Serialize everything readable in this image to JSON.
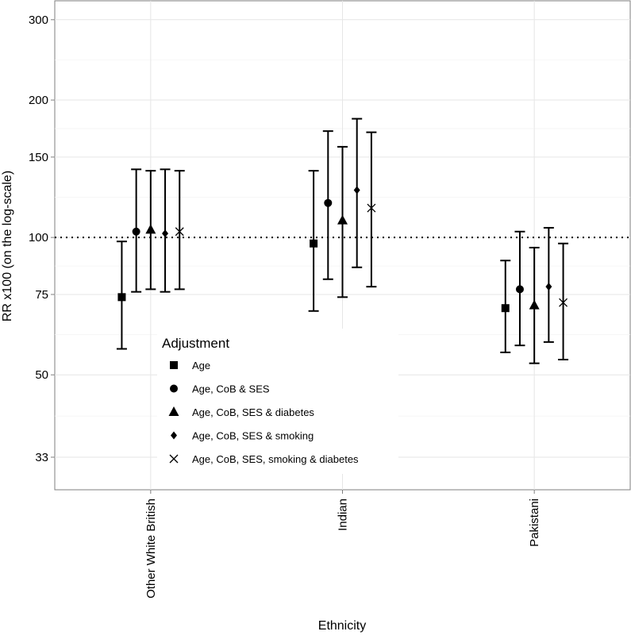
{
  "chart_data": {
    "type": "scatter",
    "subtype": "point-range with error bars",
    "xlabel": "Ethnicity",
    "ylabel": "RR x100 (on the log-scale)",
    "y_scale": "log",
    "ylim": [
      28,
      330
    ],
    "yticks": [
      33,
      50,
      75,
      100,
      150,
      200,
      300
    ],
    "grid": true,
    "reference_line": 100,
    "categories": [
      "Other White British",
      "Indian",
      "Pakistani"
    ],
    "legend": {
      "title": "Adjustment",
      "position": "inside-bottom-left"
    },
    "series": [
      {
        "name": "Age",
        "marker": "square",
        "points": [
          {
            "category": "Other White British",
            "value": 74,
            "lower": 57,
            "upper": 98
          },
          {
            "category": "Indian",
            "value": 97,
            "lower": 69,
            "upper": 140
          },
          {
            "category": "Pakistani",
            "value": 70,
            "lower": 56,
            "upper": 89
          }
        ]
      },
      {
        "name": "Age, CoB & SES",
        "marker": "circle",
        "points": [
          {
            "category": "Other White British",
            "value": 103,
            "lower": 76,
            "upper": 141
          },
          {
            "category": "Indian",
            "value": 119,
            "lower": 81,
            "upper": 171
          },
          {
            "category": "Pakistani",
            "value": 77,
            "lower": 58,
            "upper": 103
          }
        ]
      },
      {
        "name": "Age, CoB, SES & diabetes",
        "marker": "triangle",
        "points": [
          {
            "category": "Other White British",
            "value": 104,
            "lower": 77,
            "upper": 140
          },
          {
            "category": "Indian",
            "value": 109,
            "lower": 74,
            "upper": 158
          },
          {
            "category": "Pakistani",
            "value": 71,
            "lower": 53,
            "upper": 95
          }
        ]
      },
      {
        "name": "Age, CoB, SES & smoking",
        "marker": "diamond",
        "points": [
          {
            "category": "Other White British",
            "value": 102,
            "lower": 76,
            "upper": 141
          },
          {
            "category": "Indian",
            "value": 127,
            "lower": 86,
            "upper": 182
          },
          {
            "category": "Pakistani",
            "value": 78,
            "lower": 59,
            "upper": 105
          }
        ]
      },
      {
        "name": "Age, CoB, SES, smoking & diabetes",
        "marker": "cross",
        "points": [
          {
            "category": "Other White British",
            "value": 103,
            "lower": 77,
            "upper": 140
          },
          {
            "category": "Indian",
            "value": 116,
            "lower": 78,
            "upper": 170
          },
          {
            "category": "Pakistani",
            "value": 72,
            "lower": 54,
            "upper": 97
          }
        ]
      }
    ]
  }
}
